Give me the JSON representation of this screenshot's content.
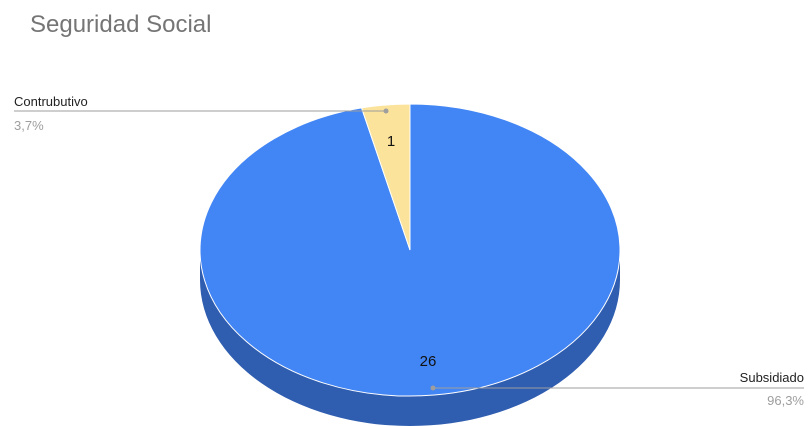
{
  "chart_data": {
    "type": "pie",
    "title": "Seguridad Social",
    "three_d": true,
    "legend": "labels-outside",
    "slices": [
      {
        "label": "Subsidiado",
        "value": 26,
        "percent_label": "96,3%",
        "color": "#4285f4",
        "side_color": "#2f5db0"
      },
      {
        "label": "Contrubutivo",
        "value": 1,
        "percent_label": "3,7%",
        "color": "#fbe39b",
        "side_color": "#c9a85c"
      }
    ]
  }
}
